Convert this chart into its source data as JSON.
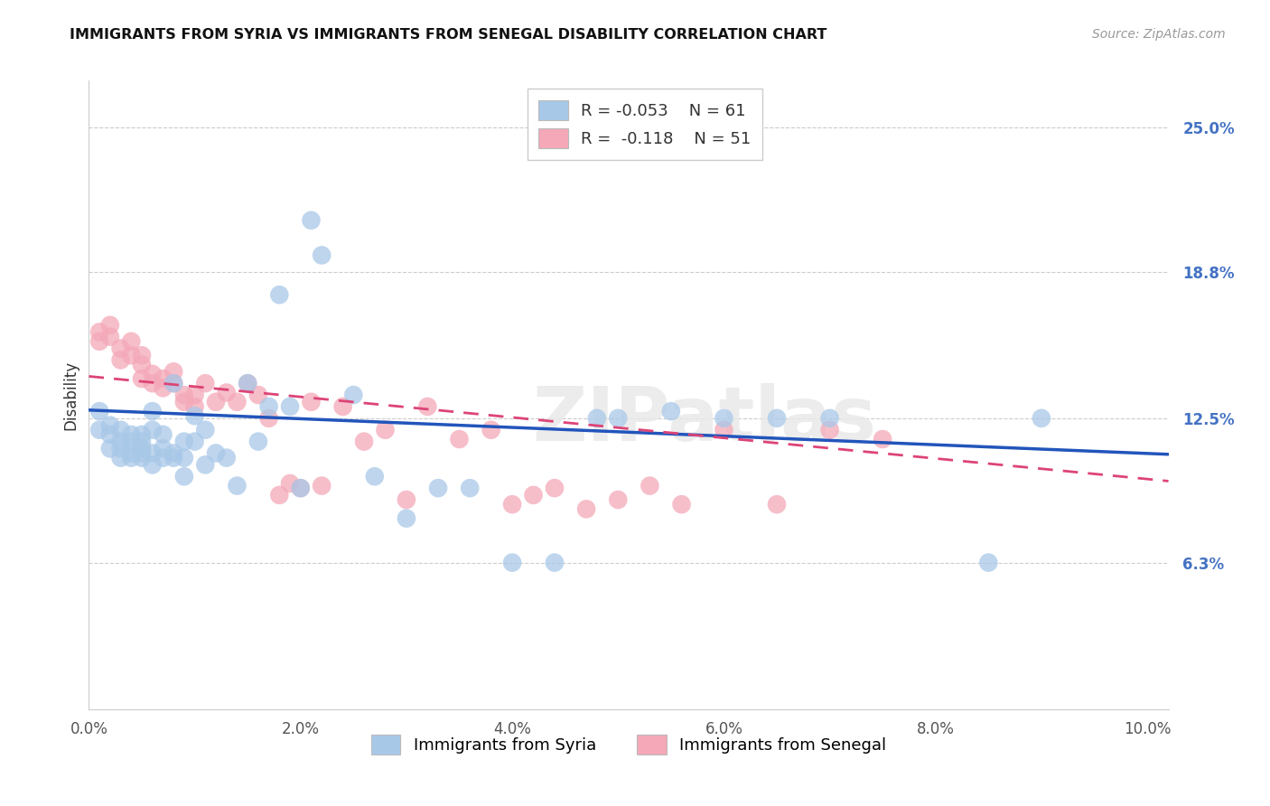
{
  "title": "IMMIGRANTS FROM SYRIA VS IMMIGRANTS FROM SENEGAL DISABILITY CORRELATION CHART",
  "source": "Source: ZipAtlas.com",
  "ylabel": "Disability",
  "x_ticks": [
    0.0,
    0.02,
    0.04,
    0.06,
    0.08,
    0.1
  ],
  "x_tick_labels": [
    "0.0%",
    "2.0%",
    "4.0%",
    "6.0%",
    "8.0%",
    "10.0%"
  ],
  "y_ticks_right": [
    0.063,
    0.125,
    0.188,
    0.25
  ],
  "y_tick_labels_right": [
    "6.3%",
    "12.5%",
    "18.8%",
    "25.0%"
  ],
  "xlim": [
    0.0,
    0.102
  ],
  "ylim": [
    0.0,
    0.27
  ],
  "legend_R_syria": "-0.053",
  "legend_N_syria": "61",
  "legend_R_senegal": "-0.118",
  "legend_N_senegal": "51",
  "syria_color": "#a8c8e8",
  "senegal_color": "#f4a8b8",
  "syria_line_color": "#2255bb",
  "senegal_line_color": "#dd4477",
  "watermark": "ZIPatlas",
  "syria_x": [
    0.001,
    0.001,
    0.002,
    0.002,
    0.002,
    0.003,
    0.003,
    0.003,
    0.003,
    0.004,
    0.004,
    0.004,
    0.004,
    0.005,
    0.005,
    0.005,
    0.005,
    0.005,
    0.006,
    0.006,
    0.006,
    0.006,
    0.007,
    0.007,
    0.007,
    0.008,
    0.008,
    0.008,
    0.009,
    0.009,
    0.009,
    0.01,
    0.01,
    0.011,
    0.011,
    0.012,
    0.013,
    0.014,
    0.015,
    0.016,
    0.017,
    0.018,
    0.019,
    0.02,
    0.021,
    0.022,
    0.025,
    0.027,
    0.03,
    0.033,
    0.036,
    0.04,
    0.044,
    0.048,
    0.05,
    0.055,
    0.06,
    0.065,
    0.07,
    0.085,
    0.09
  ],
  "syria_y": [
    0.128,
    0.12,
    0.122,
    0.118,
    0.112,
    0.115,
    0.112,
    0.108,
    0.12,
    0.11,
    0.115,
    0.108,
    0.118,
    0.108,
    0.112,
    0.115,
    0.118,
    0.11,
    0.105,
    0.11,
    0.12,
    0.128,
    0.108,
    0.112,
    0.118,
    0.11,
    0.14,
    0.108,
    0.1,
    0.108,
    0.115,
    0.126,
    0.115,
    0.12,
    0.105,
    0.11,
    0.108,
    0.096,
    0.14,
    0.115,
    0.13,
    0.178,
    0.13,
    0.095,
    0.21,
    0.195,
    0.135,
    0.1,
    0.082,
    0.095,
    0.095,
    0.063,
    0.063,
    0.125,
    0.125,
    0.128,
    0.125,
    0.125,
    0.125,
    0.063,
    0.125
  ],
  "senegal_x": [
    0.001,
    0.001,
    0.002,
    0.002,
    0.003,
    0.003,
    0.004,
    0.004,
    0.005,
    0.005,
    0.005,
    0.006,
    0.006,
    0.007,
    0.007,
    0.008,
    0.008,
    0.009,
    0.009,
    0.01,
    0.01,
    0.011,
    0.012,
    0.013,
    0.014,
    0.015,
    0.016,
    0.017,
    0.018,
    0.019,
    0.02,
    0.021,
    0.022,
    0.024,
    0.026,
    0.028,
    0.03,
    0.032,
    0.035,
    0.038,
    0.04,
    0.042,
    0.044,
    0.047,
    0.05,
    0.053,
    0.056,
    0.06,
    0.065,
    0.07,
    0.075
  ],
  "senegal_y": [
    0.162,
    0.158,
    0.165,
    0.16,
    0.15,
    0.155,
    0.152,
    0.158,
    0.142,
    0.148,
    0.152,
    0.14,
    0.144,
    0.138,
    0.142,
    0.14,
    0.145,
    0.132,
    0.135,
    0.13,
    0.135,
    0.14,
    0.132,
    0.136,
    0.132,
    0.14,
    0.135,
    0.125,
    0.092,
    0.097,
    0.095,
    0.132,
    0.096,
    0.13,
    0.115,
    0.12,
    0.09,
    0.13,
    0.116,
    0.12,
    0.088,
    0.092,
    0.095,
    0.086,
    0.09,
    0.096,
    0.088,
    0.12,
    0.088,
    0.12,
    0.116
  ],
  "syria_trend": [
    0.1285,
    0.1095
  ],
  "senegal_trend": [
    0.143,
    0.098
  ]
}
